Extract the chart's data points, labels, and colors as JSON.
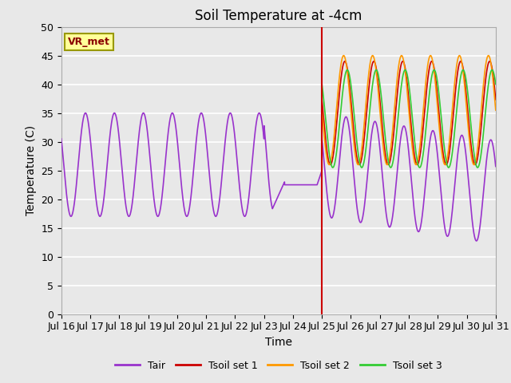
{
  "title": "Soil Temperature at -4cm",
  "xlabel": "Time",
  "ylabel": "Temperature (C)",
  "ylim": [
    0,
    50
  ],
  "xlim_start": 0,
  "xlim_end": 360,
  "xtick_positions": [
    0,
    24,
    48,
    72,
    96,
    120,
    144,
    168,
    192,
    216,
    240,
    264,
    288,
    312,
    336,
    360
  ],
  "xtick_labels": [
    "Jul 16",
    "Jul 17",
    "Jul 18",
    "Jul 19",
    "Jul 20",
    "Jul 21",
    "Jul 22",
    "Jul 23",
    "Jul 24",
    "Jul 25",
    "Jul 26",
    "Jul 27",
    "Jul 28",
    "Jul 29",
    "Jul 30",
    "Jul 31"
  ],
  "vline_x": 216,
  "colors": {
    "Tair": "#9933CC",
    "Tsoil1": "#CC0000",
    "Tsoil2": "#FF9900",
    "Tsoil3": "#33CC33"
  },
  "legend_label": "VR_met",
  "bg_color": "#E8E8E8",
  "plot_bg_color": "#E8E8E8",
  "title_fontsize": 12,
  "axis_fontsize": 10,
  "tick_fontsize": 9,
  "legend_fontsize": 9
}
